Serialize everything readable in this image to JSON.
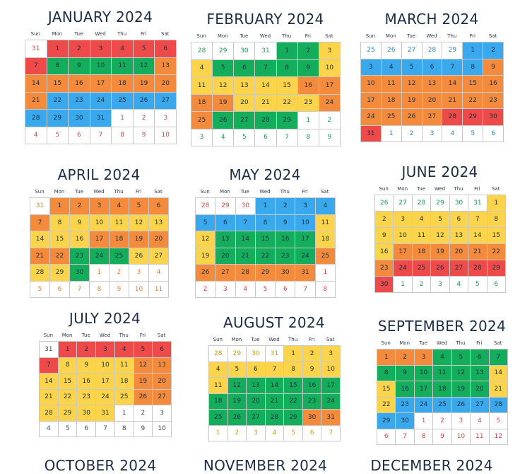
{
  "weekdays": [
    "Sun",
    "Mon",
    "Tue",
    "Wed",
    "Thu",
    "Fri",
    "Sat"
  ],
  "colors": {
    "R": "#ef4a4a",
    "O": "#f48a3c",
    "Y": "#fbd44c",
    "G": "#14ad5c",
    "B": "#39a8ec",
    "W": "#ffffff",
    "muted_text": {
      "WR": "#d24848",
      "WO": "#e4832d",
      "WY": "#c6a014",
      "WG": "#1e9a55",
      "WB": "#2f84c2"
    }
  },
  "months": [
    {
      "title": "JANUARY 2024",
      "days": [
        "31",
        "1",
        "2",
        "3",
        "4",
        "5",
        "6",
        "7",
        "8",
        "9",
        "10",
        "11",
        "12",
        "13",
        "14",
        "15",
        "16",
        "17",
        "18",
        "19",
        "20",
        "21",
        "22",
        "23",
        "24",
        "25",
        "26",
        "27",
        "28",
        "29",
        "30",
        "31",
        "1",
        "2",
        "3",
        "4",
        "5",
        "6",
        "7",
        "8",
        "9",
        "10"
      ],
      "colors": [
        "WR",
        "R",
        "R",
        "R",
        "R",
        "R",
        "R",
        "R",
        "G",
        "G",
        "G",
        "G",
        "G",
        "O",
        "O",
        "O",
        "O",
        "O",
        "O",
        "O",
        "O",
        "O",
        "B",
        "B",
        "B",
        "B",
        "B",
        "B",
        "B",
        "B",
        "B",
        "B",
        "WR",
        "WR",
        "WR",
        "WR",
        "WR",
        "WR",
        "WR",
        "WR",
        "WR",
        "WR"
      ]
    },
    {
      "title": "FEBRUARY 2024",
      "days": [
        "28",
        "29",
        "30",
        "31",
        "1",
        "2",
        "3",
        "4",
        "5",
        "6",
        "7",
        "8",
        "9",
        "10",
        "11",
        "12",
        "13",
        "14",
        "15",
        "16",
        "17",
        "18",
        "19",
        "20",
        "21",
        "22",
        "23",
        "24",
        "25",
        "26",
        "27",
        "28",
        "29",
        "1",
        "2",
        "3",
        "4",
        "5",
        "6",
        "7",
        "8",
        "9"
      ],
      "colors": [
        "WG",
        "WG",
        "WG",
        "WG",
        "G",
        "G",
        "Y",
        "Y",
        "G",
        "G",
        "G",
        "G",
        "G",
        "Y",
        "Y",
        "Y",
        "Y",
        "Y",
        "Y",
        "O",
        "O",
        "O",
        "O",
        "Y",
        "Y",
        "Y",
        "Y",
        "O",
        "O",
        "G",
        "G",
        "G",
        "G",
        "WG",
        "WG",
        "WG",
        "WG",
        "WG",
        "WG",
        "WG",
        "WG",
        "WG"
      ]
    },
    {
      "title": "MARCH 2024",
      "days": [
        "25",
        "26",
        "27",
        "28",
        "29",
        "1",
        "2",
        "3",
        "4",
        "5",
        "6",
        "7",
        "8",
        "9",
        "10",
        "11",
        "12",
        "13",
        "14",
        "15",
        "16",
        "17",
        "18",
        "19",
        "20",
        "21",
        "22",
        "23",
        "24",
        "25",
        "26",
        "27",
        "28",
        "29",
        "30",
        "31",
        "1",
        "2",
        "3",
        "4",
        "5",
        "6"
      ],
      "colors": [
        "WB",
        "WB",
        "WB",
        "WB",
        "WB",
        "B",
        "B",
        "B",
        "B",
        "B",
        "B",
        "B",
        "B",
        "O",
        "O",
        "O",
        "O",
        "O",
        "O",
        "O",
        "O",
        "O",
        "O",
        "O",
        "O",
        "O",
        "O",
        "O",
        "O",
        "O",
        "O",
        "O",
        "R",
        "R",
        "R",
        "R",
        "WB",
        "WB",
        "WB",
        "WB",
        "WB",
        "WB"
      ]
    },
    {
      "title": "APRIL 2024",
      "days": [
        "31",
        "1",
        "2",
        "3",
        "4",
        "5",
        "6",
        "7",
        "8",
        "9",
        "10",
        "11",
        "12",
        "13",
        "14",
        "15",
        "16",
        "17",
        "18",
        "19",
        "20",
        "21",
        "22",
        "23",
        "24",
        "25",
        "26",
        "27",
        "28",
        "29",
        "30",
        "1",
        "2",
        "3",
        "4",
        "5",
        "6",
        "7",
        "8",
        "9",
        "10",
        "11"
      ],
      "colors": [
        "WO",
        "O",
        "O",
        "O",
        "O",
        "O",
        "O",
        "O",
        "Y",
        "Y",
        "Y",
        "Y",
        "Y",
        "Y",
        "Y",
        "Y",
        "Y",
        "O",
        "O",
        "O",
        "O",
        "O",
        "O",
        "G",
        "G",
        "G",
        "Y",
        "Y",
        "Y",
        "Y",
        "G",
        "WO",
        "WO",
        "WO",
        "WO",
        "WO",
        "WO",
        "WO",
        "WO",
        "WO",
        "WO",
        "WO"
      ]
    },
    {
      "title": "MAY 2024",
      "days": [
        "28",
        "29",
        "30",
        "1",
        "2",
        "3",
        "4",
        "5",
        "6",
        "7",
        "8",
        "9",
        "10",
        "11",
        "12",
        "13",
        "14",
        "15",
        "16",
        "17",
        "18",
        "19",
        "20",
        "21",
        "22",
        "23",
        "24",
        "25",
        "26",
        "27",
        "28",
        "29",
        "30",
        "31",
        "1",
        "2",
        "3",
        "4",
        "5",
        "6",
        "7",
        "8"
      ],
      "colors": [
        "WR",
        "WR",
        "WR",
        "B",
        "B",
        "B",
        "B",
        "B",
        "B",
        "B",
        "B",
        "B",
        "B",
        "Y",
        "Y",
        "G",
        "G",
        "G",
        "G",
        "G",
        "Y",
        "Y",
        "G",
        "G",
        "G",
        "G",
        "G",
        "O",
        "O",
        "O",
        "O",
        "O",
        "O",
        "O",
        "WR",
        "WR",
        "WR",
        "WR",
        "WR",
        "WR",
        "WR",
        "WR"
      ]
    },
    {
      "title": "JUNE 2024",
      "days": [
        "26",
        "27",
        "28",
        "29",
        "30",
        "31",
        "1",
        "2",
        "3",
        "4",
        "5",
        "6",
        "7",
        "8",
        "9",
        "10",
        "11",
        "12",
        "13",
        "14",
        "15",
        "16",
        "17",
        "18",
        "19",
        "20",
        "21",
        "22",
        "23",
        "24",
        "25",
        "26",
        "27",
        "28",
        "29",
        "30",
        "1",
        "2",
        "3",
        "4",
        "5",
        "6"
      ],
      "colors": [
        "WG",
        "WG",
        "WG",
        "WG",
        "WG",
        "WG",
        "Y",
        "Y",
        "Y",
        "Y",
        "Y",
        "Y",
        "Y",
        "Y",
        "Y",
        "Y",
        "Y",
        "Y",
        "Y",
        "Y",
        "Y",
        "Y",
        "O",
        "O",
        "O",
        "O",
        "O",
        "O",
        "O",
        "R",
        "R",
        "R",
        "R",
        "R",
        "R",
        "R",
        "WG",
        "WG",
        "WG",
        "WG",
        "WG",
        "WG"
      ]
    },
    {
      "title": "JULY 2024",
      "days": [
        "31",
        "1",
        "2",
        "3",
        "4",
        "5",
        "6",
        "7",
        "8",
        "9",
        "10",
        "11",
        "12",
        "13",
        "14",
        "15",
        "16",
        "17",
        "18",
        "19",
        "20",
        "21",
        "22",
        "23",
        "24",
        "25",
        "26",
        "27",
        "28",
        "29",
        "30",
        "31",
        "1",
        "2",
        "3",
        "4",
        "5",
        "6",
        "7",
        "8",
        "9",
        "10"
      ],
      "colors": [
        "W",
        "R",
        "R",
        "R",
        "R",
        "R",
        "R",
        "R",
        "Y",
        "Y",
        "Y",
        "Y",
        "O",
        "O",
        "Y",
        "Y",
        "Y",
        "Y",
        "Y",
        "O",
        "O",
        "Y",
        "Y",
        "Y",
        "Y",
        "Y",
        "O",
        "O",
        "Y",
        "Y",
        "Y",
        "Y",
        "W",
        "W",
        "W",
        "W",
        "W",
        "W",
        "W",
        "W",
        "W",
        "W"
      ]
    },
    {
      "title": "AUGUST 2024",
      "days": [
        "28",
        "29",
        "30",
        "31",
        "1",
        "2",
        "3",
        "4",
        "5",
        "6",
        "7",
        "8",
        "9",
        "10",
        "11",
        "12",
        "13",
        "14",
        "15",
        "16",
        "17",
        "18",
        "19",
        "20",
        "21",
        "22",
        "23",
        "24",
        "25",
        "26",
        "27",
        "28",
        "29",
        "30",
        "31",
        "1",
        "2",
        "3",
        "4",
        "5",
        "6",
        "7"
      ],
      "colors": [
        "WY",
        "WY",
        "WY",
        "WY",
        "Y",
        "Y",
        "Y",
        "Y",
        "Y",
        "Y",
        "Y",
        "Y",
        "Y",
        "Y",
        "Y",
        "G",
        "G",
        "G",
        "G",
        "G",
        "G",
        "G",
        "G",
        "G",
        "G",
        "G",
        "G",
        "G",
        "G",
        "G",
        "G",
        "G",
        "G",
        "O",
        "O",
        "WY",
        "WY",
        "WY",
        "WY",
        "WY",
        "WY",
        "WY"
      ]
    },
    {
      "title": "SEPTEMBER 2024",
      "days": [
        "1",
        "2",
        "3",
        "4",
        "5",
        "6",
        "7",
        "8",
        "9",
        "10",
        "11",
        "12",
        "13",
        "14",
        "15",
        "16",
        "17",
        "18",
        "19",
        "20",
        "21",
        "22",
        "23",
        "24",
        "25",
        "26",
        "27",
        "28",
        "29",
        "30",
        "1",
        "2",
        "3",
        "4",
        "5",
        "6",
        "7",
        "8",
        "9",
        "10",
        "11",
        "12"
      ],
      "colors": [
        "O",
        "O",
        "O",
        "G",
        "G",
        "G",
        "G",
        "G",
        "G",
        "G",
        "G",
        "G",
        "G",
        "Y",
        "Y",
        "G",
        "G",
        "G",
        "G",
        "G",
        "Y",
        "Y",
        "B",
        "B",
        "B",
        "B",
        "B",
        "B",
        "B",
        "B",
        "WR",
        "WR",
        "WR",
        "WR",
        "WR",
        "WR",
        "WR",
        "WR",
        "WR",
        "WR",
        "WR",
        "WR"
      ]
    }
  ],
  "next_row_titles": [
    "OCTOBER 2024",
    "NOVEMBER 2024",
    "DECEMBER 2024"
  ]
}
